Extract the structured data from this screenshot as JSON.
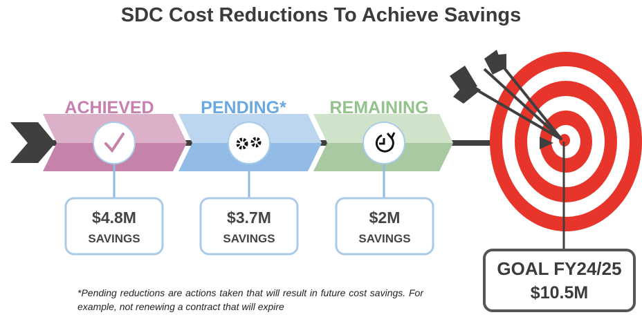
{
  "title": "SDC Cost Reductions To Achieve Savings",
  "stages": [
    {
      "label": "ACHIEVED",
      "amount": "$4.8M",
      "caption": "SAVINGS"
    },
    {
      "label": "PENDING*",
      "amount": "$3.7M",
      "caption": "SAVINGS"
    },
    {
      "label": "REMAINING",
      "amount": "$2M",
      "caption": "SAVINGS"
    }
  ],
  "goal": {
    "label": "GOAL FY24/25",
    "amount": "$10.5M"
  },
  "footnote": "*Pending reductions are actions taken that will result in future cost savings. For example, not renewing a contract that will expire"
}
